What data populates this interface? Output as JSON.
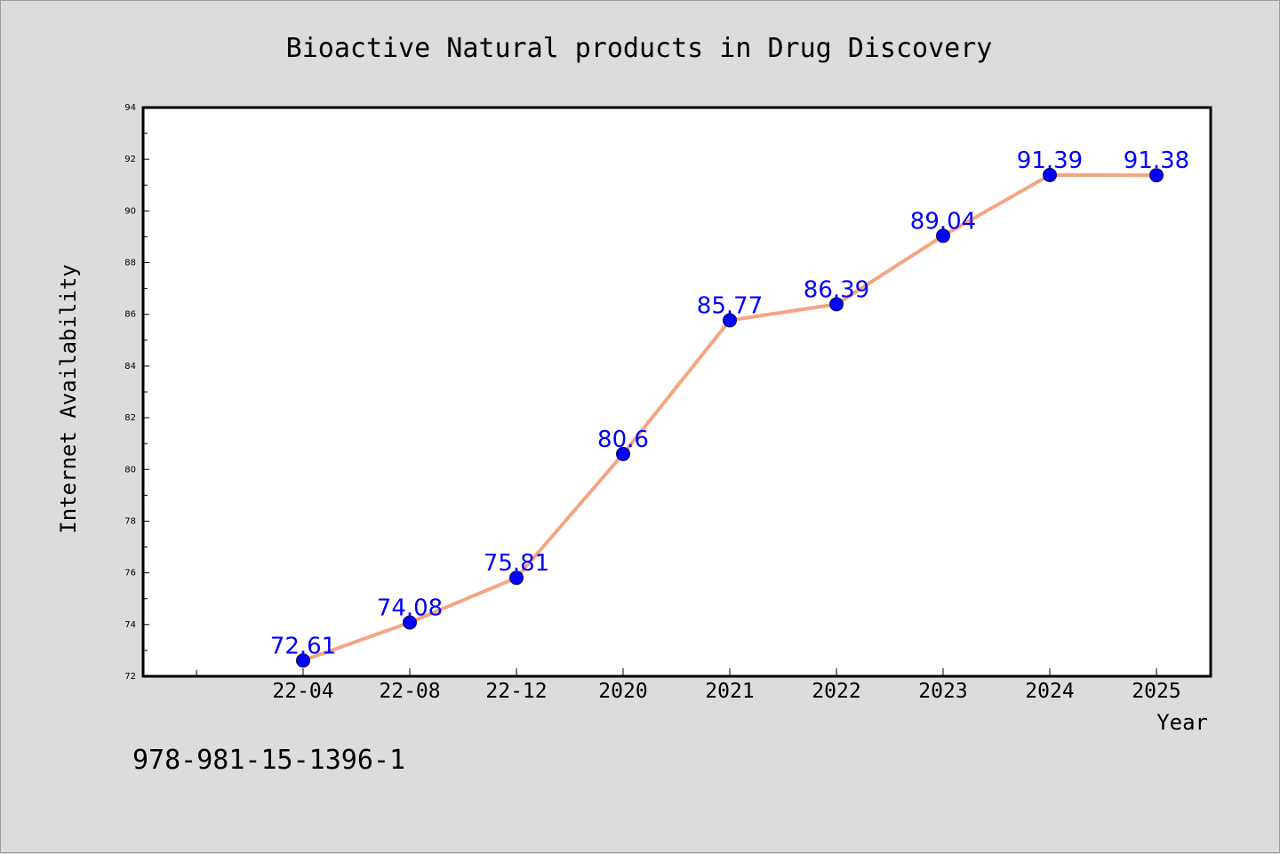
{
  "chart_data": {
    "type": "line",
    "title": "Bioactive Natural products in Drug Discovery",
    "xlabel": "Year",
    "ylabel": "Internet Availability",
    "categories": [
      "22-04",
      "22-08",
      "22-12",
      "2020",
      "2021",
      "2022",
      "2023",
      "2024",
      "2025"
    ],
    "series": [
      {
        "values": [
          72.61,
          74.08,
          75.81,
          80.6,
          85.77,
          86.39,
          89.04,
          91.39,
          91.38
        ],
        "labels": [
          "72.61",
          "74.08",
          "75.81",
          "80.6",
          "85.77",
          "86.39",
          "89.04",
          "91.39",
          "91.38"
        ],
        "line_color": "#f4a582",
        "marker_color": "#0000ff"
      }
    ],
    "ylim": [
      72,
      94
    ],
    "yticks": [
      72,
      74,
      76,
      78,
      80,
      82,
      84,
      86,
      88,
      90,
      92,
      94
    ],
    "grid": false,
    "legend": "none"
  },
  "footer": {
    "isbn": "978-981-15-1396-1"
  },
  "colors": {
    "background": "#dcdcdc",
    "plot_background": "#ffffff",
    "data_label": "#0000ff"
  }
}
